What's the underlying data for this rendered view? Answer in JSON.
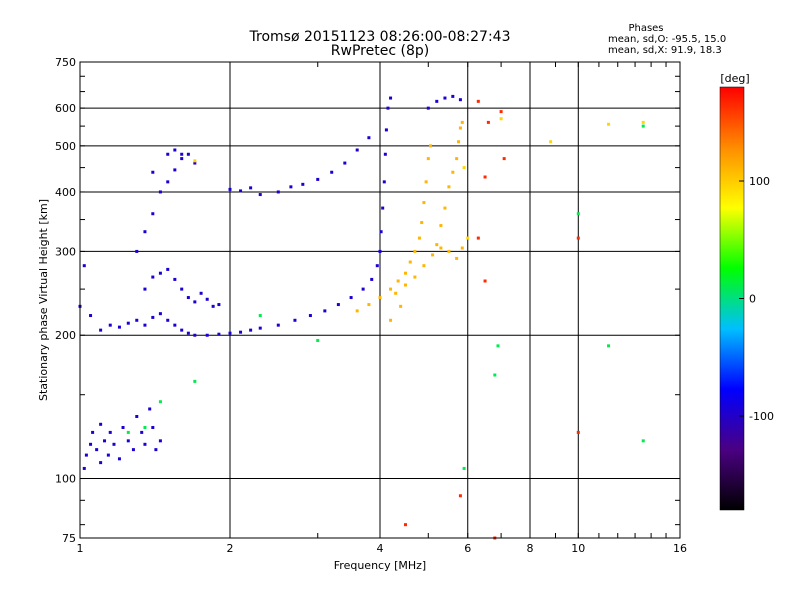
{
  "chart_data": {
    "type": "scatter",
    "title": "Tromsø 20151123 08:26:00-08:27:43",
    "subtitle": "RwPretec (8p)",
    "xlabel": "Frequency [MHz]",
    "ylabel": "Stationary phase Virtual Height [km]",
    "x_scale": "log",
    "y_scale": "log",
    "xlim": [
      1,
      16
    ],
    "ylim": [
      75,
      750
    ],
    "x_ticks": [
      1,
      2,
      4,
      6,
      8,
      10,
      16
    ],
    "x_gridlines": [
      2,
      4,
      6,
      8,
      10
    ],
    "y_ticks": [
      75,
      100,
      200,
      300,
      400,
      500,
      600,
      750
    ],
    "y_gridlines": [
      100,
      200,
      300,
      400,
      500,
      600
    ],
    "grid": true,
    "stats": {
      "heading": "Phases",
      "o_line": "mean, sd,O: -95.5, 15.0",
      "x_line": "mean, sd,X:  91.9, 18.3"
    },
    "colorbar": {
      "label": "[deg]",
      "range": [
        -180,
        180
      ],
      "ticks": [
        100,
        0,
        -100
      ],
      "colors": [
        "#000000",
        "#4b0082",
        "#0000ff",
        "#00bfff",
        "#00ff00",
        "#ffff00",
        "#ff8c00",
        "#ff0000"
      ]
    },
    "series": [
      {
        "color_value": -95,
        "points": [
          [
            1.02,
            105
          ],
          [
            1.03,
            112
          ],
          [
            1.05,
            118
          ],
          [
            1.06,
            125
          ],
          [
            1.08,
            115
          ],
          [
            1.1,
            108
          ],
          [
            1.1,
            130
          ],
          [
            1.12,
            120
          ],
          [
            1.14,
            112
          ],
          [
            1.15,
            125
          ],
          [
            1.17,
            118
          ],
          [
            1.2,
            110
          ],
          [
            1.22,
            128
          ],
          [
            1.25,
            120
          ],
          [
            1.28,
            115
          ],
          [
            1.3,
            135
          ],
          [
            1.33,
            125
          ],
          [
            1.35,
            118
          ],
          [
            1.38,
            140
          ],
          [
            1.4,
            128
          ],
          [
            1.42,
            115
          ],
          [
            1.45,
            120
          ],
          [
            1.1,
            205
          ],
          [
            1.15,
            210
          ],
          [
            1.2,
            208
          ],
          [
            1.25,
            212
          ],
          [
            1.3,
            215
          ],
          [
            1.35,
            210
          ],
          [
            1.4,
            218
          ],
          [
            1.45,
            222
          ],
          [
            1.5,
            215
          ],
          [
            1.55,
            210
          ],
          [
            1.6,
            205
          ],
          [
            1.65,
            202
          ],
          [
            1.7,
            200
          ],
          [
            1.8,
            200
          ],
          [
            1.9,
            201
          ],
          [
            2.0,
            202
          ],
          [
            2.1,
            203
          ],
          [
            2.2,
            205
          ],
          [
            2.3,
            207
          ],
          [
            2.5,
            210
          ],
          [
            2.7,
            215
          ],
          [
            2.9,
            220
          ],
          [
            3.1,
            225
          ],
          [
            3.3,
            232
          ],
          [
            3.5,
            240
          ],
          [
            3.7,
            250
          ],
          [
            3.85,
            262
          ],
          [
            3.95,
            280
          ],
          [
            4.0,
            300
          ],
          [
            4.02,
            330
          ],
          [
            4.05,
            370
          ],
          [
            4.08,
            420
          ],
          [
            4.1,
            480
          ],
          [
            4.12,
            540
          ],
          [
            4.15,
            600
          ],
          [
            4.2,
            630
          ],
          [
            1.35,
            250
          ],
          [
            1.4,
            265
          ],
          [
            1.45,
            270
          ],
          [
            1.5,
            275
          ],
          [
            1.55,
            262
          ],
          [
            1.6,
            250
          ],
          [
            1.65,
            240
          ],
          [
            1.7,
            235
          ],
          [
            1.75,
            245
          ],
          [
            1.8,
            238
          ],
          [
            1.85,
            230
          ],
          [
            1.9,
            232
          ],
          [
            1.3,
            300
          ],
          [
            1.35,
            330
          ],
          [
            1.4,
            360
          ],
          [
            1.45,
            400
          ],
          [
            1.5,
            420
          ],
          [
            1.55,
            445
          ],
          [
            1.6,
            470
          ],
          [
            1.65,
            480
          ],
          [
            1.7,
            460
          ],
          [
            1.4,
            440
          ],
          [
            1.5,
            480
          ],
          [
            1.55,
            490
          ],
          [
            1.6,
            480
          ],
          [
            2.0,
            405
          ],
          [
            2.1,
            402
          ],
          [
            2.2,
            408
          ],
          [
            2.3,
            395
          ],
          [
            2.5,
            400
          ],
          [
            2.65,
            410
          ],
          [
            2.8,
            415
          ],
          [
            3.0,
            425
          ],
          [
            3.2,
            440
          ],
          [
            3.4,
            460
          ],
          [
            3.6,
            490
          ],
          [
            3.8,
            520
          ],
          [
            5.0,
            600
          ],
          [
            5.2,
            620
          ],
          [
            5.4,
            630
          ],
          [
            5.6,
            635
          ],
          [
            5.8,
            625
          ],
          [
            1.0,
            230
          ],
          [
            1.02,
            280
          ],
          [
            1.05,
            220
          ]
        ]
      },
      {
        "color_value": 110,
        "points": [
          [
            3.6,
            225
          ],
          [
            3.8,
            232
          ],
          [
            4.0,
            240
          ],
          [
            4.2,
            250
          ],
          [
            4.35,
            260
          ],
          [
            4.5,
            270
          ],
          [
            4.6,
            285
          ],
          [
            4.7,
            300
          ],
          [
            4.8,
            320
          ],
          [
            4.85,
            345
          ],
          [
            4.9,
            380
          ],
          [
            4.95,
            420
          ],
          [
            5.0,
            470
          ],
          [
            5.05,
            500
          ],
          [
            5.2,
            310
          ],
          [
            5.3,
            340
          ],
          [
            5.4,
            370
          ],
          [
            5.5,
            410
          ],
          [
            5.6,
            440
          ],
          [
            5.7,
            470
          ],
          [
            5.75,
            510
          ],
          [
            5.8,
            545
          ],
          [
            5.85,
            560
          ],
          [
            4.3,
            245
          ],
          [
            4.5,
            255
          ],
          [
            4.7,
            265
          ],
          [
            4.9,
            280
          ],
          [
            5.1,
            295
          ],
          [
            5.3,
            305
          ],
          [
            5.5,
            300
          ],
          [
            5.7,
            290
          ],
          [
            5.85,
            305
          ],
          [
            4.2,
            215
          ],
          [
            4.4,
            230
          ]
        ]
      },
      {
        "color_value": 165,
        "points": [
          [
            6.3,
            620
          ],
          [
            6.6,
            560
          ],
          [
            7.0,
            590
          ],
          [
            6.5,
            430
          ],
          [
            6.3,
            320
          ],
          [
            6.5,
            260
          ],
          [
            7.1,
            470
          ],
          [
            10.0,
            320
          ],
          [
            10.0,
            125
          ],
          [
            5.8,
            92
          ],
          [
            4.5,
            80
          ],
          [
            6.8,
            75
          ]
        ]
      },
      {
        "color_value": 10,
        "points": [
          [
            1.25,
            125
          ],
          [
            1.35,
            128
          ],
          [
            1.45,
            145
          ],
          [
            1.7,
            160
          ],
          [
            2.3,
            220
          ],
          [
            3.0,
            195
          ],
          [
            6.8,
            165
          ],
          [
            6.9,
            190
          ],
          [
            10.0,
            360
          ],
          [
            11.5,
            190
          ],
          [
            13.5,
            550
          ],
          [
            13.5,
            120
          ],
          [
            5.9,
            105
          ]
        ]
      },
      {
        "color_value": 95,
        "points": [
          [
            8.8,
            510
          ],
          [
            11.5,
            555
          ],
          [
            13.5,
            560
          ],
          [
            1.7,
            465
          ],
          [
            7.0,
            570
          ],
          [
            6.0,
            320
          ],
          [
            5.9,
            450
          ]
        ]
      }
    ]
  }
}
